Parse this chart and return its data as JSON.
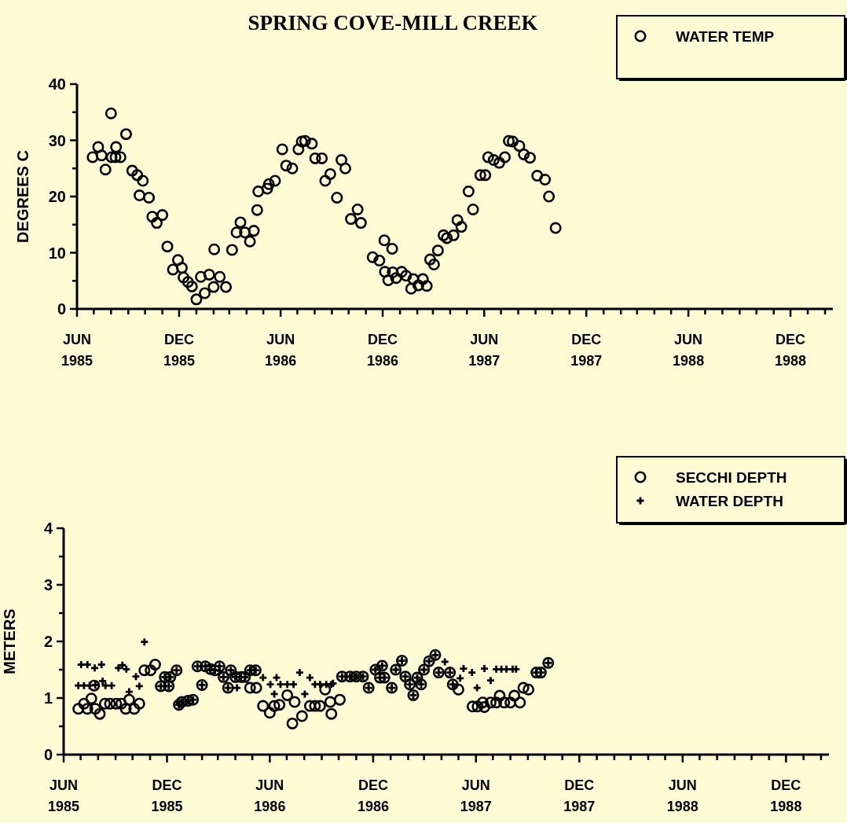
{
  "chart_data": [
    {
      "type": "scatter",
      "title": "SPRING COVE-MILL CREEK",
      "ylabel": "DEGREES C",
      "legend": "top right",
      "marker": "circle",
      "xlim": [
        "1985-06",
        "1989-02-15"
      ],
      "ylim": [
        0,
        40
      ],
      "xticks": [
        {
          "value": "1985-06",
          "label": "JUN 1985"
        },
        {
          "value": "1985-07",
          "label": null
        },
        {
          "value": "1985-08",
          "label": null
        },
        {
          "value": "1985-09",
          "label": null
        },
        {
          "value": "1985-10",
          "label": null
        },
        {
          "value": "1985-11",
          "label": null
        },
        {
          "value": "1985-12",
          "label": "DEC 1985"
        },
        {
          "value": "1986-01",
          "label": null
        },
        {
          "value": "1986-02",
          "label": null
        },
        {
          "value": "1986-03",
          "label": null
        },
        {
          "value": "1986-04",
          "label": null
        },
        {
          "value": "1986-05",
          "label": null
        },
        {
          "value": "1986-06",
          "label": "JUN 1986"
        },
        {
          "value": "1986-07",
          "label": null
        },
        {
          "value": "1986-08",
          "label": null
        },
        {
          "value": "1986-09",
          "label": null
        },
        {
          "value": "1986-10",
          "label": null
        },
        {
          "value": "1986-11",
          "label": null
        },
        {
          "value": "1986-12",
          "label": "DEC 1986"
        },
        {
          "value": "1987-01",
          "label": null
        },
        {
          "value": "1987-02",
          "label": null
        },
        {
          "value": "1987-03",
          "label": null
        },
        {
          "value": "1987-04",
          "label": null
        },
        {
          "value": "1987-05",
          "label": null
        },
        {
          "value": "1987-06",
          "label": "JUN 1987"
        },
        {
          "value": "1987-07",
          "label": null
        },
        {
          "value": "1987-08",
          "label": null
        },
        {
          "value": "1987-09",
          "label": null
        },
        {
          "value": "1987-10",
          "label": null
        },
        {
          "value": "1987-11",
          "label": null
        },
        {
          "value": "1987-12",
          "label": "DEC 1987"
        },
        {
          "value": "1988-01",
          "label": null
        },
        {
          "value": "1988-02",
          "label": null
        },
        {
          "value": "1988-03",
          "label": null
        },
        {
          "value": "1988-04",
          "label": null
        },
        {
          "value": "1988-05",
          "label": null
        },
        {
          "value": "1988-06",
          "label": "JUN 1988"
        },
        {
          "value": "1988-07",
          "label": null
        },
        {
          "value": "1988-08",
          "label": null
        },
        {
          "value": "1988-09",
          "label": null
        },
        {
          "value": "1988-10",
          "label": null
        },
        {
          "value": "1988-11",
          "label": null
        },
        {
          "value": "1988-12",
          "label": "DEC 1988"
        },
        {
          "value": "1989-01",
          "label": null
        },
        {
          "value": "1989-02",
          "label": null
        }
      ],
      "yticks": [
        0,
        {
          "value": 5,
          "label": null
        },
        10,
        {
          "value": 15,
          "label": null
        },
        20,
        {
          "value": 25,
          "label": null
        },
        30,
        {
          "value": 35,
          "label": null
        },
        40
      ],
      "series": [
        {
          "name": "WATER TEMP",
          "color": "#000000",
          "x": [
            "1985-06-29",
            "1985-07-09",
            "1985-07-15",
            "1985-07-22",
            "1985-08-01",
            "1985-08-02",
            "1985-08-09",
            "1985-08-10",
            "1985-08-18",
            "1985-08-28",
            "1985-09-08",
            "1985-09-17",
            "1985-09-21",
            "1985-09-27",
            "1985-10-08",
            "1985-10-14",
            "1985-10-22",
            "1985-11-01",
            "1985-11-10",
            "1985-11-20",
            "1985-11-29",
            "1985-12-06",
            "1985-12-09",
            "1985-12-17",
            "1985-12-24",
            "1986-01-01",
            "1986-01-09",
            "1986-01-16",
            "1986-01-24",
            "1986-02-01",
            "1986-02-02",
            "1986-02-12",
            "1986-02-23",
            "1986-03-06",
            "1986-03-14",
            "1986-03-21",
            "1986-03-29",
            "1986-04-07",
            "1986-04-14",
            "1986-04-20",
            "1986-04-22",
            "1986-05-08",
            "1986-05-11",
            "1986-05-22",
            "1986-06-04",
            "1986-06-11",
            "1986-06-22",
            "1986-07-03",
            "1986-07-09",
            "1986-07-15",
            "1986-07-27",
            "1986-08-02",
            "1986-08-14",
            "1986-08-20",
            "1986-08-29",
            "1986-09-10",
            "1986-09-18",
            "1986-09-25",
            "1986-10-05",
            "1986-10-17",
            "1986-10-23",
            "1986-11-13",
            "1986-11-25",
            "1986-12-04",
            "1986-12-05",
            "1986-12-11",
            "1986-12-18",
            "1986-12-19",
            "1986-12-25",
            "1987-01-04",
            "1987-01-12",
            "1987-01-21",
            "1987-01-25",
            "1987-02-03",
            "1987-02-11",
            "1987-02-18",
            "1987-02-24",
            "1987-03-03",
            "1987-03-10",
            "1987-03-20",
            "1987-03-26",
            "1987-04-07",
            "1987-04-14",
            "1987-04-21",
            "1987-05-04",
            "1987-05-12",
            "1987-05-25",
            "1987-06-03",
            "1987-06-08",
            "1987-06-18",
            "1987-06-28",
            "1987-07-08",
            "1987-07-15",
            "1987-07-22",
            "1987-08-03",
            "1987-08-11",
            "1987-08-22",
            "1987-09-04",
            "1987-09-18",
            "1987-09-25",
            "1987-10-07"
          ],
          "values": [
            27.0,
            28.8,
            27.3,
            24.8,
            34.8,
            27.0,
            27.0,
            28.8,
            27.0,
            31.1,
            24.6,
            23.8,
            20.2,
            22.8,
            19.8,
            16.4,
            15.3,
            16.7,
            11.1,
            7.0,
            8.7,
            7.3,
            5.6,
            4.8,
            4.0,
            1.7,
            5.7,
            2.8,
            6.1,
            3.9,
            10.6,
            5.7,
            3.9,
            10.5,
            13.6,
            15.4,
            13.6,
            12.0,
            13.9,
            17.6,
            20.9,
            21.4,
            22.2,
            22.8,
            28.4,
            25.5,
            25.0,
            28.4,
            29.8,
            29.9,
            29.4,
            26.8,
            26.8,
            22.8,
            24.0,
            19.8,
            26.5,
            25.0,
            16.0,
            17.7,
            15.3,
            9.2,
            8.6,
            12.2,
            6.6,
            5.1,
            10.7,
            6.5,
            5.5,
            6.6,
            5.9,
            3.6,
            5.3,
            4.2,
            5.3,
            4.1,
            8.8,
            7.9,
            10.4,
            13.1,
            12.6,
            13.1,
            15.8,
            14.6,
            20.9,
            17.7,
            23.8,
            23.8,
            27.0,
            26.5,
            26.0,
            27.0,
            29.9,
            29.8,
            29.0,
            27.5,
            26.9,
            23.7,
            23.0,
            20.0,
            14.4
          ]
        }
      ]
    },
    {
      "type": "scatter",
      "ylabel": "METERS",
      "legend": "top right",
      "xlim": [
        "1985-06",
        "1989-02-15"
      ],
      "ylim": [
        0,
        4
      ],
      "xticks": [
        {
          "value": "1985-06",
          "label": "JUN 1985"
        },
        {
          "value": "1985-07",
          "label": null
        },
        {
          "value": "1985-08",
          "label": null
        },
        {
          "value": "1985-09",
          "label": null
        },
        {
          "value": "1985-10",
          "label": null
        },
        {
          "value": "1985-11",
          "label": null
        },
        {
          "value": "1985-12",
          "label": "DEC 1985"
        },
        {
          "value": "1986-01",
          "label": null
        },
        {
          "value": "1986-02",
          "label": null
        },
        {
          "value": "1986-03",
          "label": null
        },
        {
          "value": "1986-04",
          "label": null
        },
        {
          "value": "1986-05",
          "label": null
        },
        {
          "value": "1986-06",
          "label": "JUN 1986"
        },
        {
          "value": "1986-07",
          "label": null
        },
        {
          "value": "1986-08",
          "label": null
        },
        {
          "value": "1986-09",
          "label": null
        },
        {
          "value": "1986-10",
          "label": null
        },
        {
          "value": "1986-11",
          "label": null
        },
        {
          "value": "1986-12",
          "label": "DEC 1986"
        },
        {
          "value": "1987-01",
          "label": null
        },
        {
          "value": "1987-02",
          "label": null
        },
        {
          "value": "1987-03",
          "label": null
        },
        {
          "value": "1987-04",
          "label": null
        },
        {
          "value": "1987-05",
          "label": null
        },
        {
          "value": "1987-06",
          "label": "JUN 1987"
        },
        {
          "value": "1987-07",
          "label": null
        },
        {
          "value": "1987-08",
          "label": null
        },
        {
          "value": "1987-09",
          "label": null
        },
        {
          "value": "1987-10",
          "label": null
        },
        {
          "value": "1987-11",
          "label": null
        },
        {
          "value": "1987-12",
          "label": "DEC 1987"
        },
        {
          "value": "1988-01",
          "label": null
        },
        {
          "value": "1988-02",
          "label": null
        },
        {
          "value": "1988-03",
          "label": null
        },
        {
          "value": "1988-04",
          "label": null
        },
        {
          "value": "1988-05",
          "label": null
        },
        {
          "value": "1988-06",
          "label": "JUN 1988"
        },
        {
          "value": "1988-07",
          "label": null
        },
        {
          "value": "1988-08",
          "label": null
        },
        {
          "value": "1988-09",
          "label": null
        },
        {
          "value": "1988-10",
          "label": null
        },
        {
          "value": "1988-11",
          "label": null
        },
        {
          "value": "1988-12",
          "label": "DEC 1988"
        },
        {
          "value": "1989-01",
          "label": null
        },
        {
          "value": "1989-02",
          "label": null
        }
      ],
      "yticks": [
        0,
        {
          "value": 0.5,
          "label": null
        },
        1,
        {
          "value": 1.5,
          "label": null
        },
        2,
        {
          "value": 2.5,
          "label": null
        },
        3,
        {
          "value": 3.5,
          "label": null
        },
        4
      ],
      "series": [
        {
          "name": "WATER DEPTH",
          "color": "#000000",
          "marker": "cross",
          "x": [
            "1985-06-27",
            "1985-07-02",
            "1985-07-07",
            "1985-07-13",
            "1985-07-17",
            "1985-07-26",
            "1985-07-27",
            "1985-08-07",
            "1985-08-09",
            "1985-08-14",
            "1985-08-25",
            "1985-09-06",
            "1985-09-13",
            "1985-09-20",
            "1985-09-25",
            "1985-10-07",
            "1985-10-13",
            "1985-10-22",
            "1985-11-20",
            "1985-11-27",
            "1985-12-04",
            "1985-12-07",
            "1985-12-18",
            "1985-12-22",
            "1985-12-27",
            "1986-01-07",
            "1986-01-16",
            "1986-01-24",
            "1986-02-01",
            "1986-02-07",
            "1986-02-16",
            "1986-02-24",
            "1986-03-04",
            "1986-03-11",
            "1986-03-19",
            "1986-03-24",
            "1986-04-01",
            "1986-04-11",
            "1986-04-18",
            "1986-04-27",
            "1986-05-07",
            "1986-04-04",
            "1986-05-20",
            "1986-06-02",
            "1986-06-09",
            "1986-06-13",
            "1986-06-20",
            "1986-07-02",
            "1986-07-13",
            "1986-07-24",
            "1986-08-02",
            "1986-08-11",
            "1986-08-20",
            "1986-08-29",
            "1986-09-09",
            "1986-09-18",
            "1986-09-21",
            "1986-10-07",
            "1986-10-21",
            "1986-11-01",
            "1986-11-13",
            "1986-11-23",
            "1986-12-05",
            "1986-12-13",
            "1986-12-17",
            "1986-12-21",
            "1987-01-03",
            "1987-01-10",
            "1987-01-21",
            "1987-01-27",
            "1987-02-04",
            "1987-02-10",
            "1987-02-17",
            "1987-02-24",
            "1987-03-01",
            "1987-03-10",
            "1987-03-21",
            "1987-03-27",
            "1987-04-16",
            "1987-04-21",
            "1987-04-07",
            "1987-05-04",
            "1987-05-10",
            "1987-05-25",
            "1987-06-03",
            "1987-06-16",
            "1987-06-27",
            "1987-07-07",
            "1987-07-16",
            "1987-07-25",
            "1987-08-05",
            "1987-08-11",
            "1987-09-16",
            "1987-09-24",
            "1987-10-07"
          ],
          "values": [
            1.22,
            1.59,
            1.22,
            1.59,
            1.22,
            1.53,
            1.23,
            1.59,
            1.3,
            1.22,
            1.22,
            1.53,
            1.58,
            1.51,
            1.11,
            1.38,
            1.21,
            1.99,
            1.21,
            1.37,
            1.21,
            1.37,
            1.49,
            0.88,
            0.93,
            0.95,
            0.97,
            1.56,
            1.23,
            1.56,
            1.51,
            1.49,
            1.56,
            1.37,
            1.18,
            1.49,
            1.37,
            1.37,
            1.37,
            1.49,
            1.49,
            1.18,
            1.36,
            1.24,
            1.07,
            1.36,
            1.24,
            1.24,
            1.24,
            1.45,
            1.07,
            1.36,
            1.24,
            1.24,
            1.24,
            1.24,
            1.26,
            1.38,
            1.38,
            1.38,
            1.38,
            1.18,
            1.5,
            1.36,
            1.57,
            1.36,
            1.18,
            1.5,
            1.66,
            1.38,
            1.24,
            1.05,
            1.36,
            1.24,
            1.5,
            1.65,
            1.76,
            1.45,
            1.45,
            1.24,
            1.64,
            1.35,
            1.52,
            1.45,
            1.18,
            1.52,
            1.31,
            1.51,
            1.51,
            1.51,
            1.51,
            1.51,
            1.45,
            1.45,
            1.62
          ]
        },
        {
          "name": "SECCHI DEPTH",
          "color": "#000000",
          "marker": "circle",
          "x": [
            "1985-06-27",
            "1985-07-07",
            "1985-07-13",
            "1985-07-20",
            "1985-07-25",
            "1985-07-27",
            "1985-08-04",
            "1985-08-13",
            "1985-08-22",
            "1985-09-02",
            "1985-09-11",
            "1985-09-19",
            "1985-09-25",
            "1985-10-04",
            "1985-10-13",
            "1985-10-22",
            "1985-11-02",
            "1985-11-10",
            "1985-11-20",
            "1985-11-27",
            "1985-12-04",
            "1985-12-07",
            "1985-12-18",
            "1985-12-22",
            "1985-12-27",
            "1986-01-07",
            "1986-01-16",
            "1986-01-24",
            "1986-02-01",
            "1986-02-07",
            "1986-02-16",
            "1986-02-24",
            "1986-03-04",
            "1986-03-11",
            "1986-03-19",
            "1986-03-24",
            "1986-04-01",
            "1986-04-11",
            "1986-04-18",
            "1986-04-27",
            "1986-05-07",
            "1986-04-27",
            "1986-05-08",
            "1986-05-20",
            "1986-06-01",
            "1986-06-09",
            "1986-06-18",
            "1986-07-02",
            "1986-07-11",
            "1986-07-15",
            "1986-07-28",
            "1986-08-11",
            "1986-08-20",
            "1986-08-29",
            "1986-09-07",
            "1986-09-16",
            "1986-09-18",
            "1986-10-03",
            "1986-10-07",
            "1986-10-21",
            "1986-11-01",
            "1986-11-13",
            "1986-11-23",
            "1986-12-05",
            "1986-12-13",
            "1986-12-17",
            "1986-12-21",
            "1987-01-03",
            "1987-01-10",
            "1987-01-21",
            "1987-01-27",
            "1987-02-04",
            "1987-02-10",
            "1987-02-17",
            "1987-02-24",
            "1987-03-01",
            "1987-03-10",
            "1987-03-21",
            "1987-03-27",
            "1987-04-16",
            "1987-04-21",
            "1987-05-01",
            "1987-05-26",
            "1987-06-04",
            "1987-06-13",
            "1987-06-16",
            "1987-06-27",
            "1987-07-07",
            "1987-07-13",
            "1987-07-21",
            "1987-08-01",
            "1987-08-08",
            "1987-08-18",
            "1987-08-24",
            "1987-09-02",
            "1987-09-16",
            "1987-09-24",
            "1987-10-07"
          ],
          "values": [
            0.81,
            0.9,
            0.81,
            0.99,
            1.22,
            0.81,
            0.72,
            0.9,
            0.9,
            0.9,
            0.9,
            0.81,
            0.97,
            0.81,
            0.9,
            1.49,
            1.49,
            1.59,
            1.21,
            1.37,
            1.21,
            1.37,
            1.49,
            0.88,
            0.93,
            0.95,
            0.97,
            1.56,
            1.23,
            1.56,
            1.51,
            1.49,
            1.56,
            1.37,
            1.18,
            1.49,
            1.37,
            1.37,
            1.37,
            1.49,
            1.49,
            1.18,
            1.18,
            0.86,
            0.74,
            0.86,
            0.88,
            1.05,
            0.55,
            0.93,
            0.68,
            0.86,
            0.86,
            0.86,
            1.15,
            0.93,
            0.72,
            0.97,
            1.38,
            1.38,
            1.38,
            1.38,
            1.18,
            1.5,
            1.36,
            1.57,
            1.36,
            1.18,
            1.5,
            1.66,
            1.38,
            1.24,
            1.05,
            1.36,
            1.24,
            1.5,
            1.65,
            1.76,
            1.45,
            1.45,
            1.24,
            1.15,
            0.85,
            0.85,
            0.92,
            0.84,
            0.92,
            0.92,
            1.04,
            0.92,
            0.92,
            1.04,
            0.92,
            1.18,
            1.15,
            1.45,
            1.45,
            1.62
          ]
        }
      ]
    }
  ]
}
